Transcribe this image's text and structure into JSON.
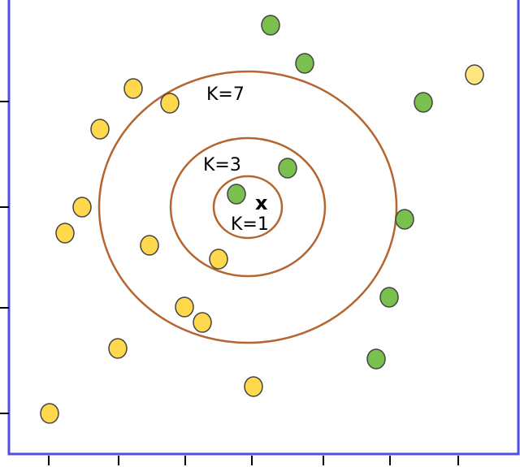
{
  "diagram": {
    "query_label": "x",
    "rings": [
      {
        "label": "K=1"
      },
      {
        "label": "K=3"
      },
      {
        "label": "K=7"
      }
    ],
    "colors": {
      "frame": "#4d4de8",
      "ring": "#b5652f",
      "class_a": "#ffd84d",
      "class_b": "#7ac04f",
      "outline": "#444444",
      "highlight": "#ffe680"
    }
  }
}
